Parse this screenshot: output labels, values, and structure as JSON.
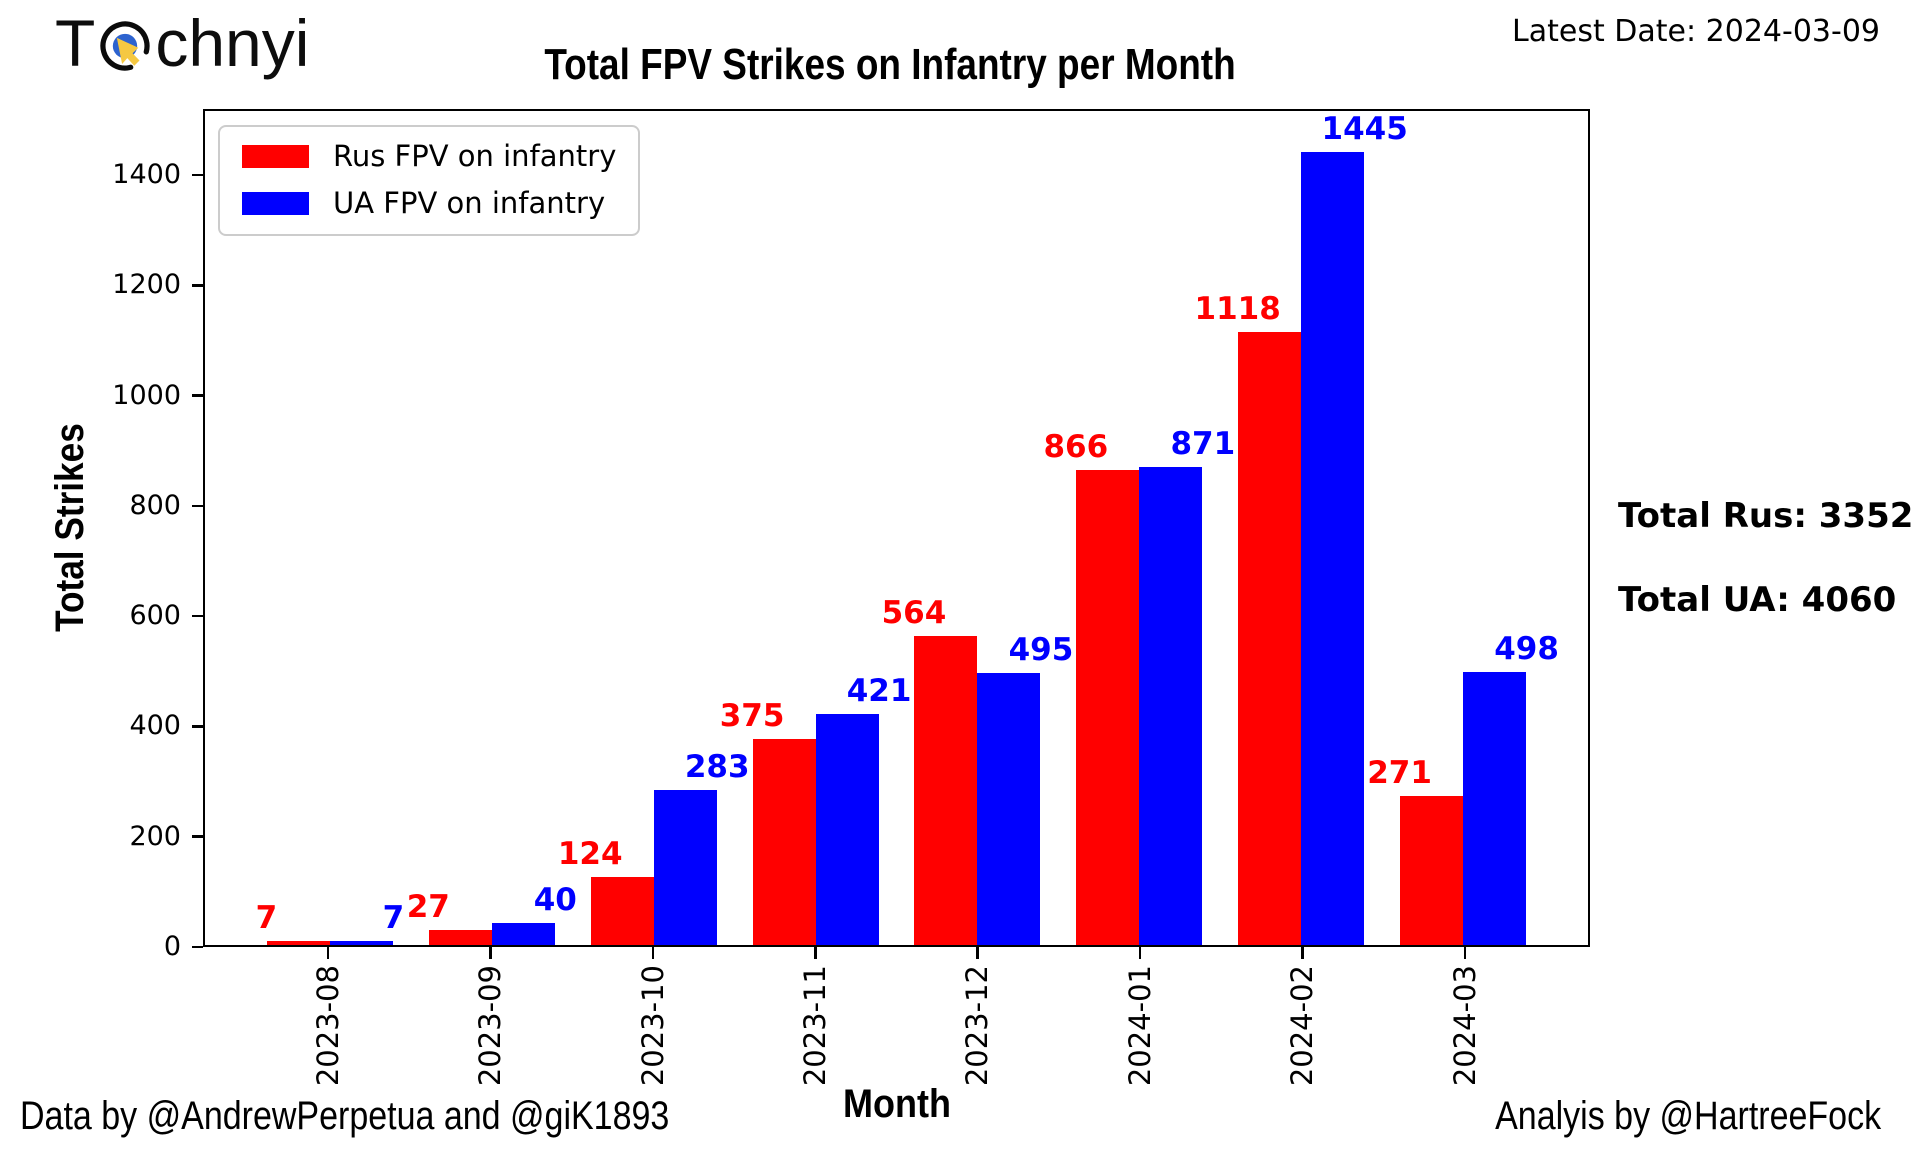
{
  "header": {
    "logo_prefix": "T",
    "logo_suffix": "chnyi",
    "latest_date": "Latest Date: 2024-03-09"
  },
  "chart_data": {
    "type": "bar",
    "title": "Total FPV Strikes on Infantry per Month",
    "xlabel": "Month",
    "ylabel": "Total Strikes",
    "categories": [
      "2023-08",
      "2023-09",
      "2023-10",
      "2023-11",
      "2023-12",
      "2024-01",
      "2024-02",
      "2024-03"
    ],
    "series": [
      {
        "name": "Rus FPV on infantry",
        "color": "#ff0000",
        "values": [
          7,
          27,
          124,
          375,
          564,
          866,
          1118,
          271
        ]
      },
      {
        "name": "UA FPV on infantry",
        "color": "#0000ff",
        "values": [
          7,
          40,
          283,
          421,
          495,
          871,
          1445,
          498
        ]
      }
    ],
    "ylim": [
      0,
      1520
    ],
    "yticks": [
      0,
      200,
      400,
      600,
      800,
      1000,
      1200,
      1400
    ],
    "grid": false,
    "legend_position": "upper-left"
  },
  "annotations": {
    "total_rus": "Total Rus: 3352",
    "total_ua": "Total UA: 4060"
  },
  "footer": {
    "left": "Data by @AndrewPerpetua and @giK1893",
    "right": "Analyis by @HartreeFock"
  },
  "logo_colors": {
    "ring": "#0b0b0b",
    "dot": "#2d63cf",
    "cursor": "#f5c842"
  }
}
